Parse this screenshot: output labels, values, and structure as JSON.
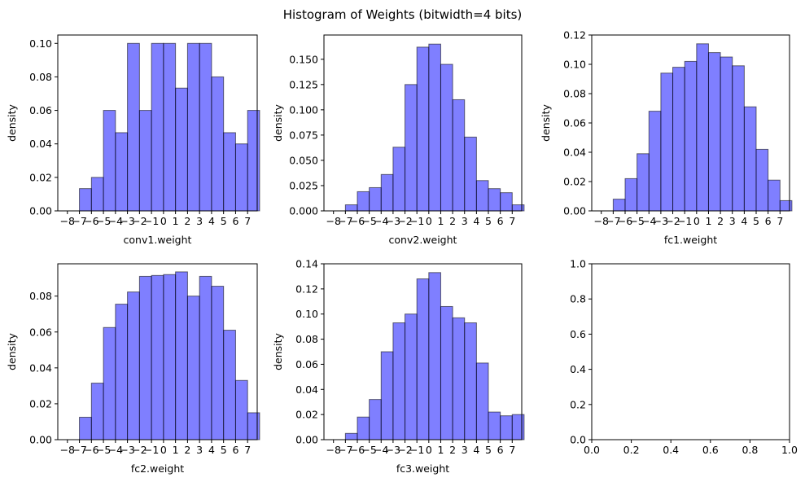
{
  "figure": {
    "title": "Histogram of Weights (bitwidth=4 bits)"
  },
  "style": {
    "bar_fill": "#0000ff",
    "bar_fill_opacity": 0.5,
    "bar_edge": "#000000",
    "background": "#ffffff"
  },
  "chart_data": [
    {
      "type": "bar",
      "xlabel": "conv1.weight",
      "ylabel": "density",
      "xlim": [
        -8.8,
        7.8
      ],
      "ylim": [
        0,
        0.105
      ],
      "xticks": [
        -8,
        -7,
        -6,
        -5,
        -4,
        -3,
        -2,
        -1,
        0,
        1,
        2,
        3,
        4,
        5,
        6,
        7
      ],
      "xtick_labels": [
        "−8",
        "−7",
        "−6",
        "−5",
        "−4",
        "−3",
        "−2",
        "−1",
        "0",
        "1",
        "2",
        "3",
        "4",
        "5",
        "6",
        "7"
      ],
      "yticks": [
        0,
        0.02,
        0.04,
        0.06,
        0.08,
        0.1
      ],
      "ytick_labels": [
        "0.00",
        "0.02",
        "0.04",
        "0.06",
        "0.08",
        "0.10"
      ],
      "bins": [
        -8,
        -7,
        -6,
        -5,
        -4,
        -3,
        -2,
        -1,
        0,
        1,
        2,
        3,
        4,
        5,
        6,
        7
      ],
      "values": [
        0,
        0.0133,
        0.02,
        0.06,
        0.0467,
        0.1,
        0.06,
        0.1,
        0.1,
        0.0733,
        0.1,
        0.1,
        0.08,
        0.0467,
        0.04,
        0.06
      ]
    },
    {
      "type": "bar",
      "xlabel": "conv2.weight",
      "ylabel": "density",
      "xlim": [
        -8.8,
        7.8
      ],
      "ylim": [
        0,
        0.174
      ],
      "xticks": [
        -8,
        -7,
        -6,
        -5,
        -4,
        -3,
        -2,
        -1,
        0,
        1,
        2,
        3,
        4,
        5,
        6,
        7
      ],
      "xtick_labels": [
        "−8",
        "−7",
        "−6",
        "−5",
        "−4",
        "−3",
        "−2",
        "−1",
        "0",
        "1",
        "2",
        "3",
        "4",
        "5",
        "6",
        "7"
      ],
      "yticks": [
        0,
        0.025,
        0.05,
        0.075,
        0.1,
        0.125,
        0.15
      ],
      "ytick_labels": [
        "0.000",
        "0.025",
        "0.050",
        "0.075",
        "0.100",
        "0.125",
        "0.150"
      ],
      "bins": [
        -8,
        -7,
        -6,
        -5,
        -4,
        -3,
        -2,
        -1,
        0,
        1,
        2,
        3,
        4,
        5,
        6,
        7
      ],
      "values": [
        0,
        0.006,
        0.019,
        0.023,
        0.036,
        0.063,
        0.125,
        0.162,
        0.165,
        0.145,
        0.11,
        0.073,
        0.03,
        0.022,
        0.018,
        0.006
      ]
    },
    {
      "type": "bar",
      "xlabel": "fc1.weight",
      "ylabel": "density",
      "xlim": [
        -8.8,
        7.8
      ],
      "ylim": [
        0,
        0.12
      ],
      "xticks": [
        -8,
        -7,
        -6,
        -5,
        -4,
        -3,
        -2,
        -1,
        0,
        1,
        2,
        3,
        4,
        5,
        6,
        7
      ],
      "xtick_labels": [
        "−8",
        "−7",
        "−6",
        "−5",
        "−4",
        "−3",
        "−2",
        "−1",
        "0",
        "1",
        "2",
        "3",
        "4",
        "5",
        "6",
        "7"
      ],
      "yticks": [
        0,
        0.02,
        0.04,
        0.06,
        0.08,
        0.1,
        0.12
      ],
      "ytick_labels": [
        "0.00",
        "0.02",
        "0.04",
        "0.06",
        "0.08",
        "0.10",
        "0.12"
      ],
      "bins": [
        -8,
        -7,
        -6,
        -5,
        -4,
        -3,
        -2,
        -1,
        0,
        1,
        2,
        3,
        4,
        5,
        6,
        7
      ],
      "values": [
        0,
        0.008,
        0.022,
        0.039,
        0.068,
        0.094,
        0.098,
        0.102,
        0.114,
        0.108,
        0.105,
        0.099,
        0.071,
        0.042,
        0.021,
        0.007
      ]
    },
    {
      "type": "bar",
      "xlabel": "fc2.weight",
      "ylabel": "density",
      "xlim": [
        -8.8,
        7.8
      ],
      "ylim": [
        0,
        0.098
      ],
      "xticks": [
        -8,
        -7,
        -6,
        -5,
        -4,
        -3,
        -2,
        -1,
        0,
        1,
        2,
        3,
        4,
        5,
        6,
        7
      ],
      "xtick_labels": [
        "−8",
        "−7",
        "−6",
        "−5",
        "−4",
        "−3",
        "−2",
        "−1",
        "0",
        "1",
        "2",
        "3",
        "4",
        "5",
        "6",
        "7"
      ],
      "yticks": [
        0,
        0.02,
        0.04,
        0.06,
        0.08
      ],
      "ytick_labels": [
        "0.00",
        "0.02",
        "0.04",
        "0.06",
        "0.08"
      ],
      "bins": [
        -8,
        -7,
        -6,
        -5,
        -4,
        -3,
        -2,
        -1,
        0,
        1,
        2,
        3,
        4,
        5,
        6,
        7
      ],
      "values": [
        0,
        0.0125,
        0.0315,
        0.0625,
        0.0755,
        0.0823,
        0.091,
        0.0915,
        0.092,
        0.0935,
        0.08,
        0.091,
        0.0855,
        0.061,
        0.033,
        0.015
      ]
    },
    {
      "type": "bar",
      "xlabel": "fc3.weight",
      "ylabel": "density",
      "xlim": [
        -8.8,
        7.8
      ],
      "ylim": [
        0,
        0.14
      ],
      "xticks": [
        -8,
        -7,
        -6,
        -5,
        -4,
        -3,
        -2,
        -1,
        0,
        1,
        2,
        3,
        4,
        5,
        6,
        7
      ],
      "xtick_labels": [
        "−8",
        "−7",
        "−6",
        "−5",
        "−4",
        "−3",
        "−2",
        "−1",
        "0",
        "1",
        "2",
        "3",
        "4",
        "5",
        "6",
        "7"
      ],
      "yticks": [
        0,
        0.02,
        0.04,
        0.06,
        0.08,
        0.1,
        0.12,
        0.14
      ],
      "ytick_labels": [
        "0.00",
        "0.02",
        "0.04",
        "0.06",
        "0.08",
        "0.10",
        "0.12",
        "0.14"
      ],
      "bins": [
        -8,
        -7,
        -6,
        -5,
        -4,
        -3,
        -2,
        -1,
        0,
        1,
        2,
        3,
        4,
        5,
        6,
        7
      ],
      "values": [
        0,
        0.005,
        0.018,
        0.032,
        0.07,
        0.093,
        0.1,
        0.128,
        0.133,
        0.106,
        0.097,
        0.093,
        0.061,
        0.022,
        0.019,
        0.02
      ]
    },
    {
      "type": "bar",
      "xlabel": "",
      "ylabel": "",
      "xlim": [
        0,
        1
      ],
      "ylim": [
        0,
        1
      ],
      "xticks": [
        0,
        0.2,
        0.4,
        0.6,
        0.8,
        1.0
      ],
      "xtick_labels": [
        "0.0",
        "0.2",
        "0.4",
        "0.6",
        "0.8",
        "1.0"
      ],
      "yticks": [
        0,
        0.2,
        0.4,
        0.6,
        0.8,
        1.0
      ],
      "ytick_labels": [
        "0.0",
        "0.2",
        "0.4",
        "0.6",
        "0.8",
        "1.0"
      ],
      "bins": [],
      "values": []
    }
  ]
}
